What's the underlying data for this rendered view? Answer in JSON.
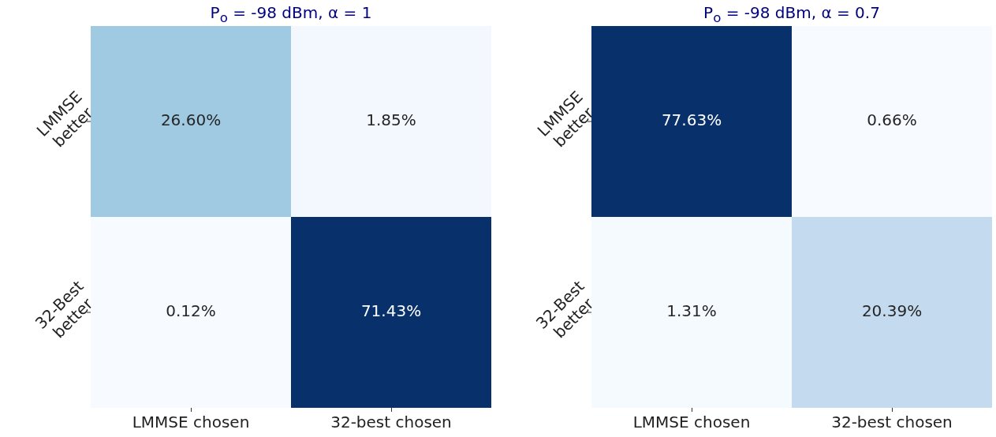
{
  "chart_data": [
    {
      "type": "heatmap",
      "title": "P$_{o}$ = -98 dBm, α = 1",
      "categories": [
        "LMMSE chosen",
        "32-best chosen"
      ],
      "y_categories": [
        "LMMSE better",
        "32-Best better"
      ],
      "cells": [
        [
          26.6,
          1.85
        ],
        [
          0.12,
          71.43
        ]
      ],
      "cell_labels": [
        [
          "26.60%",
          "1.85%"
        ],
        [
          "0.12%",
          "71.43%"
        ]
      ]
    },
    {
      "type": "heatmap",
      "title": "P$_{o}$ = -98 dBm, α = 0.7",
      "categories": [
        "LMMSE chosen",
        "32-best chosen"
      ],
      "y_categories": [
        "LMMSE better",
        "32-Best better"
      ],
      "cells": [
        [
          77.63,
          0.66
        ],
        [
          1.31,
          20.39
        ]
      ],
      "cell_labels": [
        [
          "77.63%",
          "0.66%"
        ],
        [
          "1.31%",
          "20.39%"
        ]
      ]
    }
  ]
}
